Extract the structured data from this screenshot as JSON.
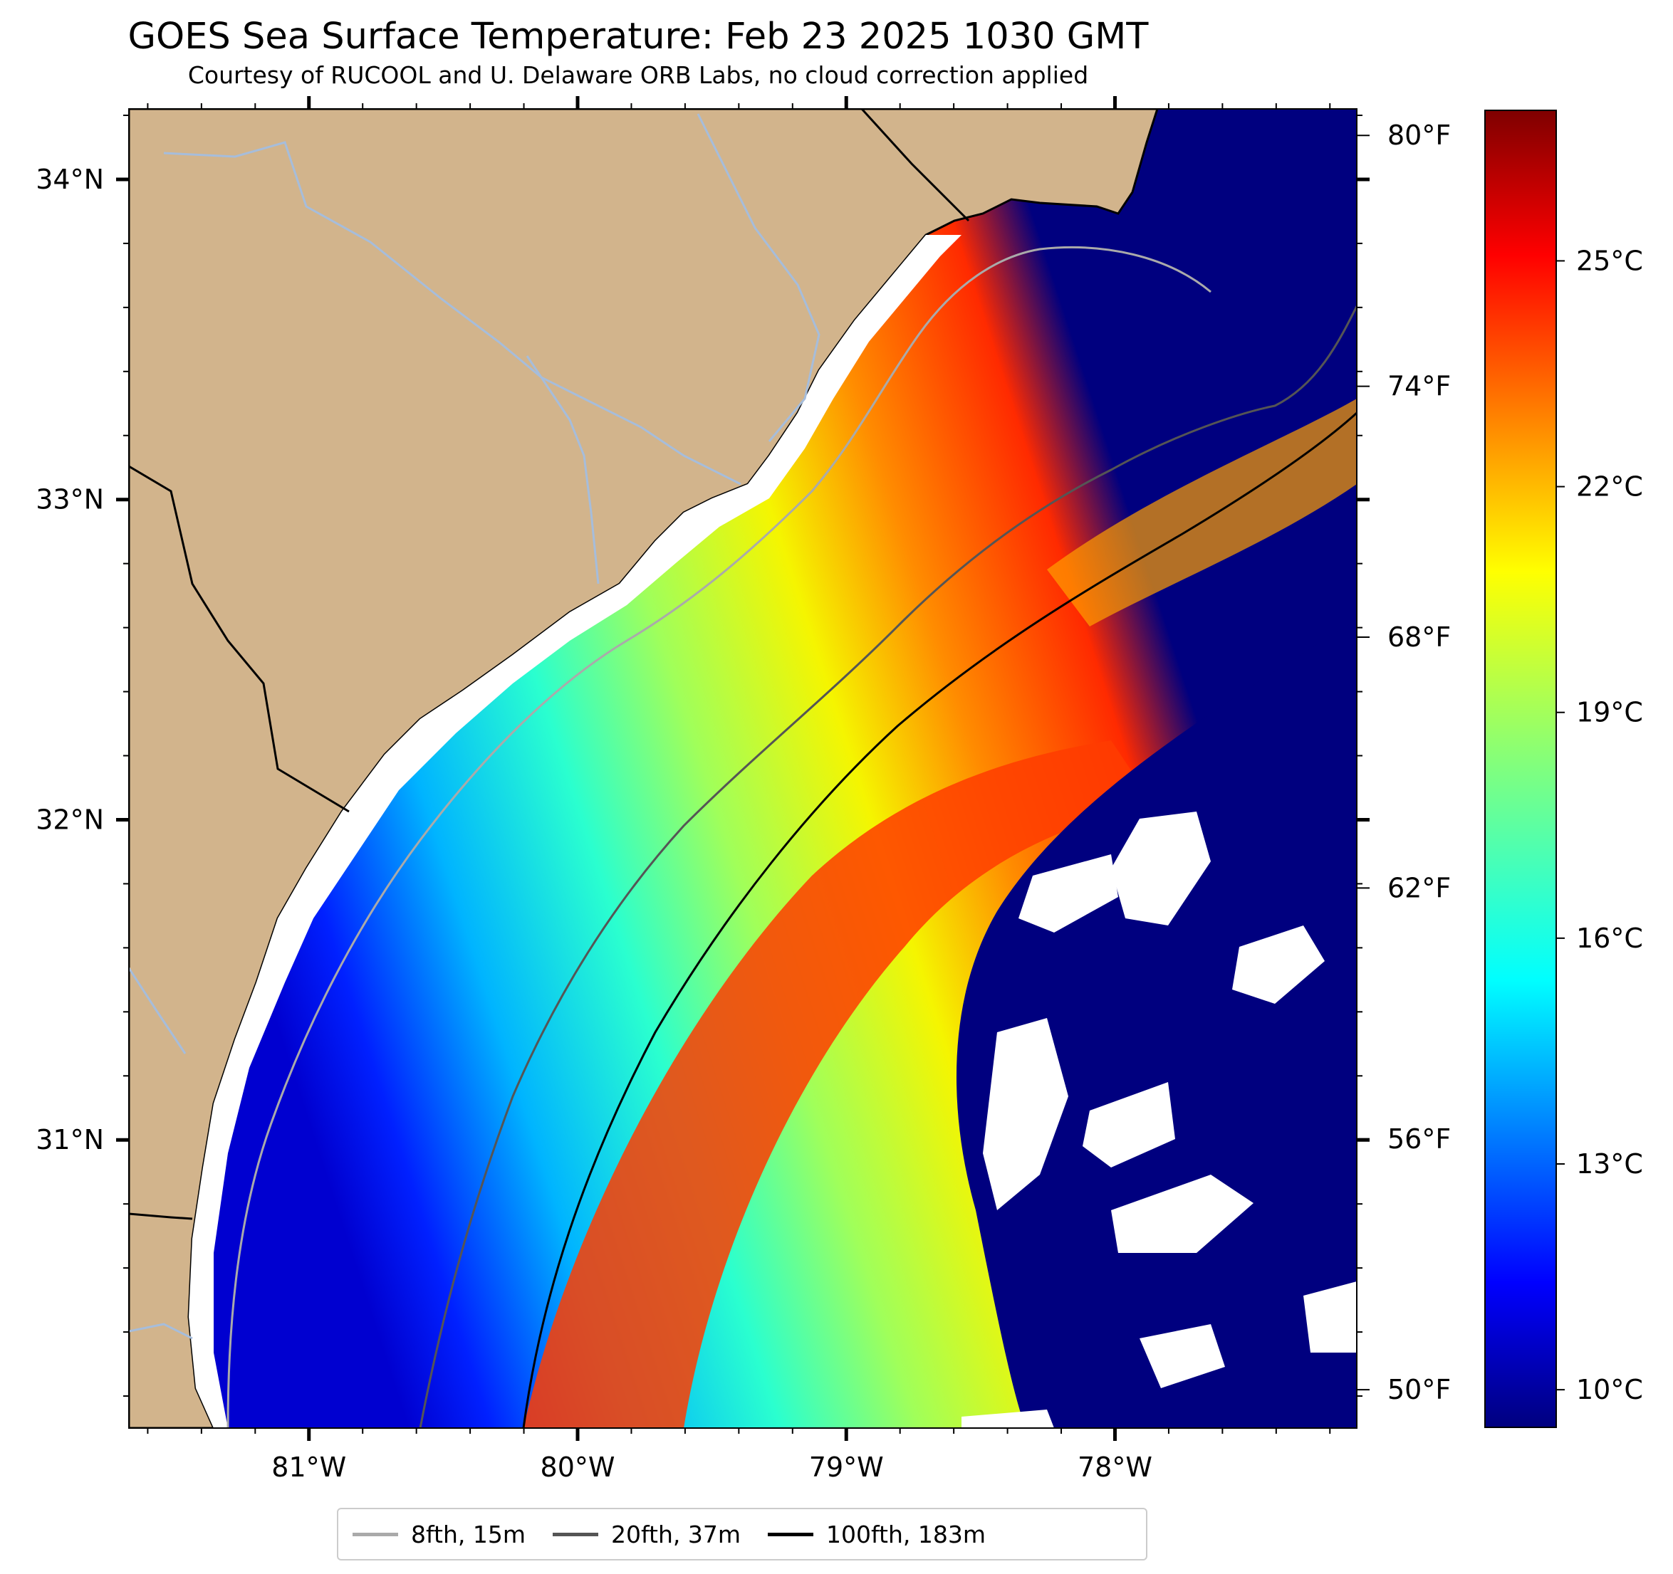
{
  "title": "GOES Sea Surface Temperature: Feb 23 2025 1030 GMT",
  "subtitle": "Courtesy of RUCOOL and U. Delaware ORB Labs, no cloud correction applied",
  "map": {
    "lon_range": [
      -81.67,
      -77.1
    ],
    "lat_range": [
      30.1,
      34.22
    ],
    "lon_ticks": [
      {
        "value": -81,
        "label": "81°W"
      },
      {
        "value": -80,
        "label": "80°W"
      },
      {
        "value": -79,
        "label": "79°W"
      },
      {
        "value": -78,
        "label": "78°W"
      }
    ],
    "lat_ticks": [
      {
        "value": 31,
        "label": "31°N"
      },
      {
        "value": 32,
        "label": "32°N"
      },
      {
        "value": 33,
        "label": "33°N"
      },
      {
        "value": 34,
        "label": "34°N"
      }
    ],
    "land_color": "#d2b48c",
    "river_color": "#a6bddb",
    "cloud_color": "#ffffff"
  },
  "colorbar": {
    "colormap": "jet",
    "range_c": [
      9.5,
      27
    ],
    "celsius_ticks": [
      {
        "value": 10,
        "label": "10°C"
      },
      {
        "value": 13,
        "label": "13°C"
      },
      {
        "value": 16,
        "label": "16°C"
      },
      {
        "value": 19,
        "label": "19°C"
      },
      {
        "value": 22,
        "label": "22°C"
      },
      {
        "value": 25,
        "label": "25°C"
      }
    ],
    "fahrenheit_ticks": [
      {
        "value": 50,
        "label": "50°F"
      },
      {
        "value": 56,
        "label": "56°F"
      },
      {
        "value": 62,
        "label": "62°F"
      },
      {
        "value": 68,
        "label": "68°F"
      },
      {
        "value": 74,
        "label": "74°F"
      },
      {
        "value": 80,
        "label": "80°F"
      }
    ]
  },
  "legend": {
    "items": [
      {
        "label": "8fth, 15m",
        "color": "#aaaaaa"
      },
      {
        "label": "20fth, 37m",
        "color": "#555555"
      },
      {
        "label": "100fth, 183m",
        "color": "#000000"
      }
    ]
  }
}
